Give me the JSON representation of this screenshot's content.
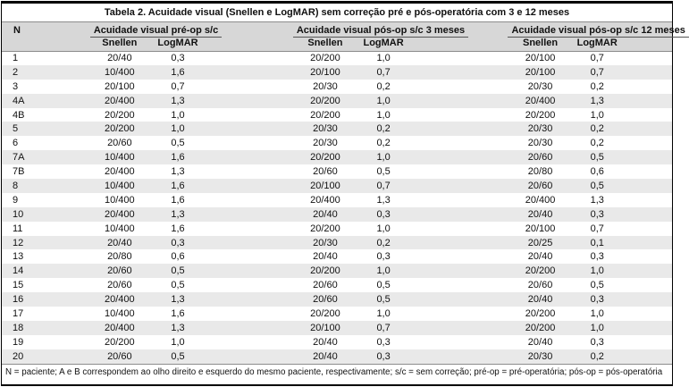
{
  "colors": {
    "header_bg": "#d7d7d7",
    "row_stripe": "#e9e9e9",
    "border": "#000000",
    "rule": "#8c8c8c",
    "text": "#111111"
  },
  "table": {
    "title": "Tabela 2. Acuidade visual (Snellen e LogMAR) sem correção pré e pós-operatória com 3 e 12 meses",
    "header": {
      "n_label": "N",
      "groups": [
        {
          "label": "Acuidade visual pré-op s/c",
          "sub": [
            "Snellen",
            "LogMAR"
          ]
        },
        {
          "label": "Acuidade visual pós-op s/c 3 meses",
          "sub": [
            "Snellen",
            "LogMAR"
          ]
        },
        {
          "label": "Acuidade visual pós-op s/c 12 meses",
          "sub": [
            "Snellen",
            "LogMAR"
          ]
        }
      ]
    },
    "rows": [
      {
        "n": "1",
        "pre": [
          "20/40",
          "0,3"
        ],
        "pos3m": [
          "20/200",
          "1,0"
        ],
        "pos12m": [
          "20/100",
          "0,7"
        ]
      },
      {
        "n": "2",
        "pre": [
          "10/400",
          "1,6"
        ],
        "pos3m": [
          "20/100",
          "0,7"
        ],
        "pos12m": [
          "20/100",
          "0,7"
        ]
      },
      {
        "n": "3",
        "pre": [
          "20/100",
          "0,7"
        ],
        "pos3m": [
          "20/30",
          "0,2"
        ],
        "pos12m": [
          "20/30",
          "0,2"
        ]
      },
      {
        "n": "4A",
        "pre": [
          "20/400",
          "1,3"
        ],
        "pos3m": [
          "20/200",
          "1,0"
        ],
        "pos12m": [
          "20/400",
          "1,3"
        ]
      },
      {
        "n": "4B",
        "pre": [
          "20/200",
          "1,0"
        ],
        "pos3m": [
          "20/200",
          "1,0"
        ],
        "pos12m": [
          "20/200",
          "1,0"
        ]
      },
      {
        "n": "5",
        "pre": [
          "20/200",
          "1,0"
        ],
        "pos3m": [
          "20/30",
          "0,2"
        ],
        "pos12m": [
          "20/30",
          "0,2"
        ]
      },
      {
        "n": "6",
        "pre": [
          "20/60",
          "0,5"
        ],
        "pos3m": [
          "20/30",
          "0,2"
        ],
        "pos12m": [
          "20/30",
          "0,2"
        ]
      },
      {
        "n": "7A",
        "pre": [
          "10/400",
          "1,6"
        ],
        "pos3m": [
          "20/200",
          "1,0"
        ],
        "pos12m": [
          "20/60",
          "0,5"
        ]
      },
      {
        "n": "7B",
        "pre": [
          "20/400",
          "1,3"
        ],
        "pos3m": [
          "20/60",
          "0,5"
        ],
        "pos12m": [
          "20/80",
          "0,6"
        ]
      },
      {
        "n": "8",
        "pre": [
          "10/400",
          "1,6"
        ],
        "pos3m": [
          "20/100",
          "0,7"
        ],
        "pos12m": [
          "20/60",
          "0,5"
        ]
      },
      {
        "n": "9",
        "pre": [
          "10/400",
          "1,6"
        ],
        "pos3m": [
          "20/400",
          "1,3"
        ],
        "pos12m": [
          "20/400",
          "1,3"
        ]
      },
      {
        "n": "10",
        "pre": [
          "20/400",
          "1,3"
        ],
        "pos3m": [
          "20/40",
          "0,3"
        ],
        "pos12m": [
          "20/40",
          "0,3"
        ]
      },
      {
        "n": "11",
        "pre": [
          "10/400",
          "1,6"
        ],
        "pos3m": [
          "20/200",
          "1,0"
        ],
        "pos12m": [
          "20/100",
          "0,7"
        ]
      },
      {
        "n": "12",
        "pre": [
          "20/40",
          "0,3"
        ],
        "pos3m": [
          "20/30",
          "0,2"
        ],
        "pos12m": [
          "20/25",
          "0,1"
        ]
      },
      {
        "n": "13",
        "pre": [
          "20/80",
          "0,6"
        ],
        "pos3m": [
          "20/40",
          "0,3"
        ],
        "pos12m": [
          "20/40",
          "0,3"
        ]
      },
      {
        "n": "14",
        "pre": [
          "20/60",
          "0,5"
        ],
        "pos3m": [
          "20/200",
          "1,0"
        ],
        "pos12m": [
          "20/200",
          "1,0"
        ]
      },
      {
        "n": "15",
        "pre": [
          "20/60",
          "0,5"
        ],
        "pos3m": [
          "20/60",
          "0,5"
        ],
        "pos12m": [
          "20/60",
          "0,5"
        ]
      },
      {
        "n": "16",
        "pre": [
          "20/400",
          "1,3"
        ],
        "pos3m": [
          "20/60",
          "0,5"
        ],
        "pos12m": [
          "20/40",
          "0,3"
        ]
      },
      {
        "n": "17",
        "pre": [
          "10/400",
          "1,6"
        ],
        "pos3m": [
          "20/200",
          "1,0"
        ],
        "pos12m": [
          "20/200",
          "1,0"
        ]
      },
      {
        "n": "18",
        "pre": [
          "20/400",
          "1,3"
        ],
        "pos3m": [
          "20/100",
          "0,7"
        ],
        "pos12m": [
          "20/200",
          "1,0"
        ]
      },
      {
        "n": "19",
        "pre": [
          "20/200",
          "1,0"
        ],
        "pos3m": [
          "20/40",
          "0,3"
        ],
        "pos12m": [
          "20/40",
          "0,3"
        ]
      },
      {
        "n": "20",
        "pre": [
          "20/60",
          "0,5"
        ],
        "pos3m": [
          "20/40",
          "0,3"
        ],
        "pos12m": [
          "20/30",
          "0,2"
        ]
      }
    ],
    "footnote": "N = paciente; A e B correspondem ao olho direito e esquerdo do mesmo paciente, respectivamente; s/c = sem correção; pré-op = pré-operatória; pós-op = pós-operatória"
  }
}
